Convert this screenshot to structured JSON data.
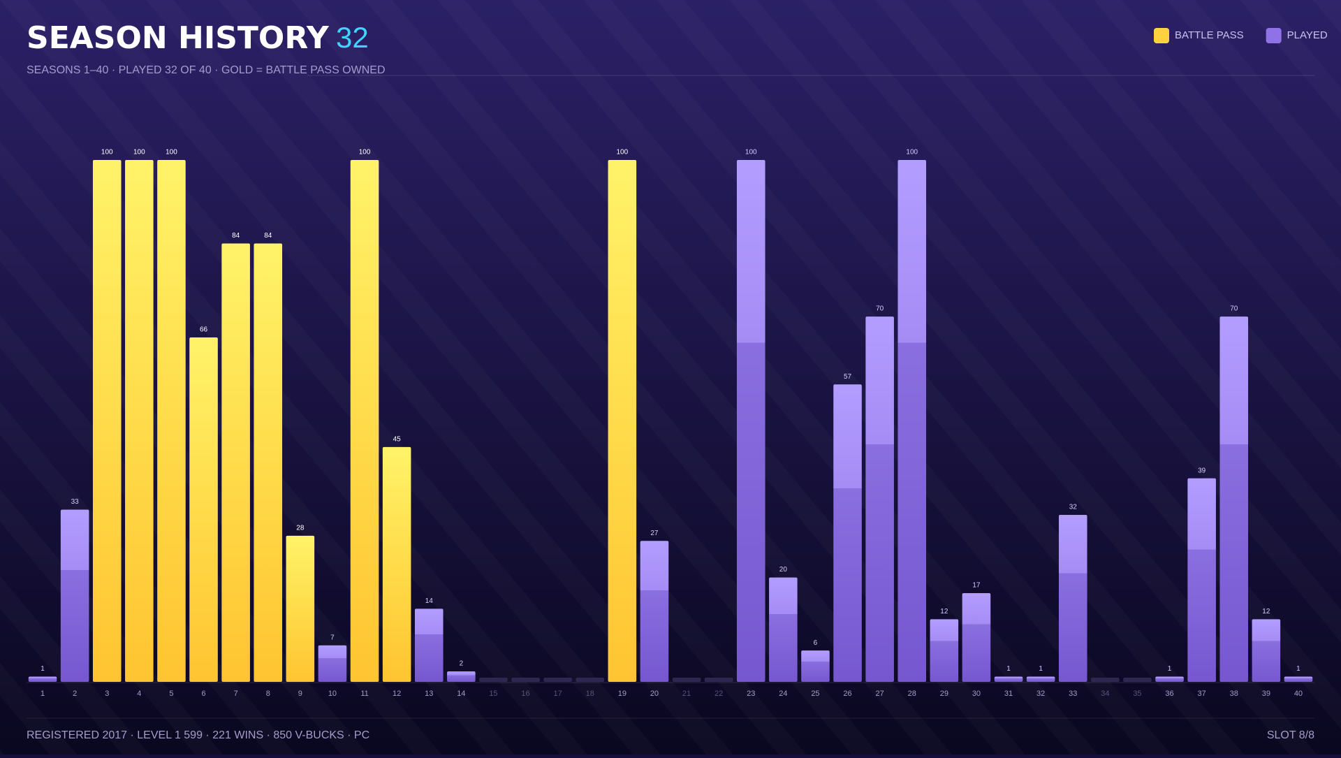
{
  "chart_data": {
    "type": "bar",
    "title": "SEASON HISTORY",
    "title_count": 32,
    "subtitle": "SEASONS 1–40 · PLAYED 32 OF 40 · GOLD = BATTLE PASS OWNED",
    "categories": [
      "1",
      "2",
      "3",
      "4",
      "5",
      "6",
      "7",
      "8",
      "9",
      "10",
      "11",
      "12",
      "13",
      "14",
      "15",
      "16",
      "17",
      "18",
      "19",
      "20",
      "21",
      "22",
      "23",
      "24",
      "25",
      "26",
      "27",
      "28",
      "29",
      "30",
      "31",
      "32",
      "33",
      "34",
      "35",
      "36",
      "37",
      "38",
      "39",
      "40"
    ],
    "series": [
      {
        "name": "BATTLE PASS",
        "color": "#ffd23f",
        "values": [
          null,
          null,
          100,
          100,
          100,
          66,
          84,
          84,
          28,
          null,
          100,
          45,
          null,
          null,
          null,
          null,
          null,
          null,
          100,
          null,
          null,
          null,
          null,
          null,
          null,
          null,
          null,
          null,
          null,
          null,
          null,
          null,
          null,
          null,
          null,
          null,
          null,
          null,
          null,
          null
        ]
      },
      {
        "name": "PLAYED",
        "color": "#8f73e6",
        "values": [
          1,
          33,
          null,
          null,
          null,
          null,
          null,
          null,
          null,
          7,
          null,
          null,
          14,
          2,
          0,
          0,
          0,
          0,
          null,
          27,
          0,
          0,
          100,
          20,
          6,
          57,
          70,
          100,
          12,
          17,
          1,
          1,
          32,
          0,
          0,
          1,
          39,
          70,
          12,
          1
        ]
      }
    ],
    "ylim": [
      0,
      100
    ],
    "footer": "REGISTERED 2017 · LEVEL 1 599 · 221 WINS · 850 V-BUCKS · PC",
    "slot": "SLOT 8/8"
  }
}
